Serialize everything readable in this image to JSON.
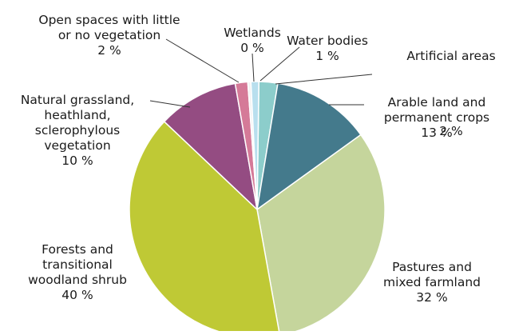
{
  "chart_data": {
    "type": "pie",
    "title": "",
    "unit": "%",
    "slices": [
      {
        "name": "Artificial areas",
        "label_lines": [
          "Artificial areas",
          "2 %"
        ],
        "value": 2.4,
        "label_value": "2 %",
        "color": "#8ccdcb"
      },
      {
        "name": "Arable land and permanent crops",
        "label_lines": [
          "Arable land and",
          "permanent crops",
          "13 %"
        ],
        "value": 12.6,
        "label_value": "13 %",
        "color": "#447a8c"
      },
      {
        "name": "Pastures and mixed farmland",
        "label_lines": [
          "Pastures and",
          "mixed farmland",
          "32 %"
        ],
        "value": 32.4,
        "label_value": "32 %",
        "color": "#c5d59c"
      },
      {
        "name": "Forests and transitional woodland shrub",
        "label_lines": [
          "Forests and",
          "transitional",
          "woodland shrub",
          "40 %"
        ],
        "value": 40.3,
        "label_value": "40 %",
        "color": "#bfc935"
      },
      {
        "name": "Natural grassland, heathland, sclerophylous vegetation",
        "label_lines": [
          "Natural grassland,",
          "heathland,",
          "sclerophylous",
          "vegetation",
          "10 %"
        ],
        "value": 10.3,
        "label_value": "10 %",
        "color": "#944c82"
      },
      {
        "name": "Open spaces with little or no vegetation",
        "label_lines": [
          "Open spaces with little",
          "or no vegetation",
          "2 %"
        ],
        "value": 1.6,
        "label_value": "2 %",
        "color": "#d57a98"
      },
      {
        "name": "Wetlands",
        "label_lines": [
          "Wetlands",
          "0 %"
        ],
        "value": 0.4,
        "label_value": "0 %",
        "color": "#f3f3f3"
      },
      {
        "name": "Water bodies",
        "label_lines": [
          "Water bodies",
          "1 %"
        ],
        "value": 1.0,
        "label_value": "1 %",
        "color": "#b8dfee"
      }
    ]
  }
}
